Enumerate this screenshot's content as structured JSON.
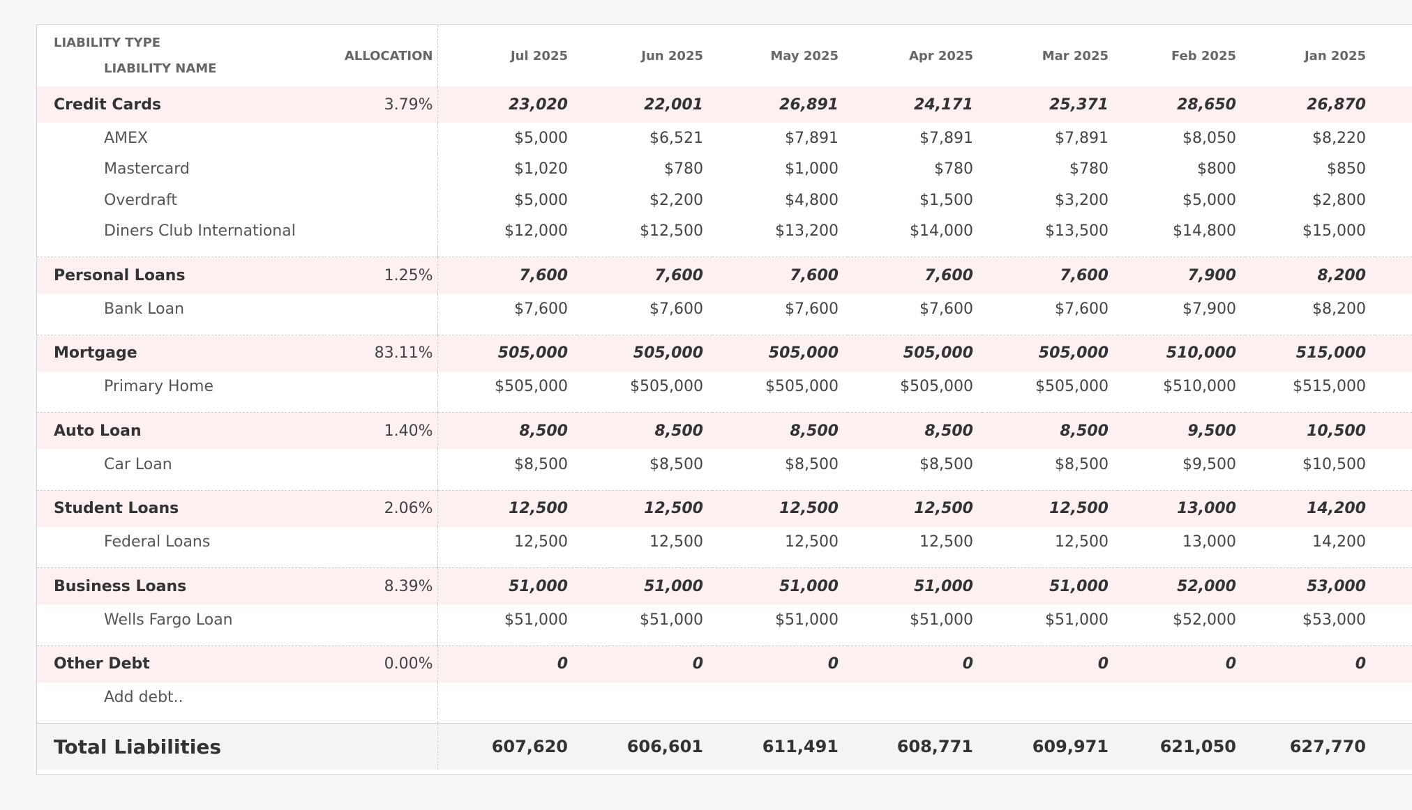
{
  "header": {
    "liability_type": "LIABILITY TYPE",
    "liability_name": "LIABILITY NAME",
    "allocation": "ALLOCATION",
    "months": [
      "Jul 2025",
      "Jun 2025",
      "May 2025",
      "Apr 2025",
      "Mar 2025",
      "Feb 2025",
      "Jan 2025"
    ]
  },
  "groups": [
    {
      "name": "Credit Cards",
      "allocation": "3.79%",
      "totals": [
        "23,020",
        "22,001",
        "26,891",
        "24,171",
        "25,371",
        "28,650",
        "26,870"
      ],
      "items": [
        {
          "name": "AMEX",
          "values": [
            "$5,000",
            "$6,521",
            "$7,891",
            "$7,891",
            "$7,891",
            "$8,050",
            "$8,220"
          ]
        },
        {
          "name": "Mastercard",
          "values": [
            "$1,020",
            "$780",
            "$1,000",
            "$780",
            "$780",
            "$800",
            "$850"
          ]
        },
        {
          "name": "Overdraft",
          "values": [
            "$5,000",
            "$2,200",
            "$4,800",
            "$1,500",
            "$3,200",
            "$5,000",
            "$2,800"
          ]
        },
        {
          "name": "Diners Club International",
          "values": [
            "$12,000",
            "$12,500",
            "$13,200",
            "$14,000",
            "$13,500",
            "$14,800",
            "$15,000"
          ]
        }
      ]
    },
    {
      "name": "Personal Loans",
      "allocation": "1.25%",
      "totals": [
        "7,600",
        "7,600",
        "7,600",
        "7,600",
        "7,600",
        "7,900",
        "8,200"
      ],
      "items": [
        {
          "name": "Bank Loan",
          "values": [
            "$7,600",
            "$7,600",
            "$7,600",
            "$7,600",
            "$7,600",
            "$7,900",
            "$8,200"
          ]
        }
      ]
    },
    {
      "name": "Mortgage",
      "allocation": "83.11%",
      "totals": [
        "505,000",
        "505,000",
        "505,000",
        "505,000",
        "505,000",
        "510,000",
        "515,000"
      ],
      "items": [
        {
          "name": "Primary Home",
          "values": [
            "$505,000",
            "$505,000",
            "$505,000",
            "$505,000",
            "$505,000",
            "$510,000",
            "$515,000"
          ]
        }
      ]
    },
    {
      "name": "Auto Loan",
      "allocation": "1.40%",
      "totals": [
        "8,500",
        "8,500",
        "8,500",
        "8,500",
        "8,500",
        "9,500",
        "10,500"
      ],
      "items": [
        {
          "name": "Car Loan",
          "values": [
            "$8,500",
            "$8,500",
            "$8,500",
            "$8,500",
            "$8,500",
            "$9,500",
            "$10,500"
          ]
        }
      ]
    },
    {
      "name": "Student Loans",
      "allocation": "2.06%",
      "totals": [
        "12,500",
        "12,500",
        "12,500",
        "12,500",
        "12,500",
        "13,000",
        "14,200"
      ],
      "items": [
        {
          "name": "Federal Loans",
          "values": [
            "12,500",
            "12,500",
            "12,500",
            "12,500",
            "12,500",
            "13,000",
            "14,200"
          ]
        }
      ]
    },
    {
      "name": "Business Loans",
      "allocation": "8.39%",
      "totals": [
        "51,000",
        "51,000",
        "51,000",
        "51,000",
        "51,000",
        "52,000",
        "53,000"
      ],
      "items": [
        {
          "name": "Wells Fargo Loan",
          "values": [
            "$51,000",
            "$51,000",
            "$51,000",
            "$51,000",
            "$51,000",
            "$52,000",
            "$53,000"
          ]
        }
      ]
    },
    {
      "name": "Other Debt",
      "allocation": "0.00%",
      "totals": [
        "0",
        "0",
        "0",
        "0",
        "0",
        "0",
        "0"
      ],
      "items": [
        {
          "name": "Add debt.."
        }
      ]
    }
  ],
  "total": {
    "label": "Total Liabilities",
    "values": [
      "607,620",
      "606,601",
      "611,491",
      "608,771",
      "609,971",
      "621,050",
      "627,770"
    ]
  }
}
